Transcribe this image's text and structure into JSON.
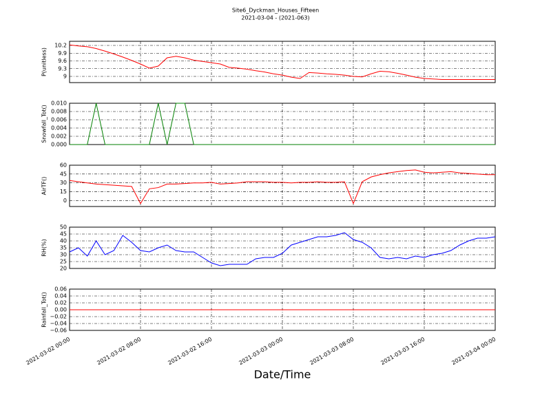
{
  "chart_data": [
    {
      "type": "line",
      "title": "Site6_Dyckman_Houses_Fifteen",
      "subtitle": "2021-03-04 - (2021-063)",
      "ylabel": "P(unitless)",
      "color": "#ff0000",
      "ylim": [
        8.76,
        10.36
      ],
      "yticks": [
        9.0,
        9.3,
        9.6,
        9.9,
        10.2
      ],
      "grid": true,
      "values": [
        10.22,
        10.18,
        10.15,
        10.08,
        9.98,
        9.87,
        9.75,
        9.62,
        9.48,
        9.32,
        9.4,
        9.72,
        9.78,
        9.72,
        9.63,
        9.58,
        9.53,
        9.48,
        9.35,
        9.32,
        9.28,
        9.22,
        9.17,
        9.1,
        9.05,
        8.97,
        8.92,
        9.15,
        9.13,
        9.1,
        9.08,
        9.05,
        9.0,
        8.98,
        9.1,
        9.2,
        9.18,
        9.12,
        9.05,
        8.97,
        8.92,
        8.9,
        8.88,
        8.88,
        8.88,
        8.88,
        8.88,
        8.88,
        8.88
      ]
    },
    {
      "type": "line",
      "ylabel": "Snowfall_Tot()",
      "color": "#007f00",
      "ylim": [
        0,
        0.01
      ],
      "yticks": [
        {
          "value": 0,
          "label": "0.000"
        },
        {
          "value": 0.002,
          "label": "0.002"
        },
        {
          "value": 0.004,
          "label": "0.004"
        },
        {
          "value": 0.006,
          "label": "0.006"
        },
        {
          "value": 0.008,
          "label": "0.008"
        },
        {
          "value": 0.01,
          "label": "0.010"
        }
      ],
      "grid": true,
      "values": [
        0,
        0,
        0,
        0.01,
        0,
        0,
        0,
        0,
        0,
        0,
        0.01,
        0,
        0.01,
        0.01,
        0,
        0,
        0,
        0,
        0,
        0,
        0,
        0,
        0,
        0,
        0,
        0,
        0,
        0,
        0,
        0,
        0,
        0,
        0,
        0,
        0,
        0,
        0,
        0,
        0,
        0,
        0,
        0,
        0,
        0,
        0,
        0,
        0,
        0,
        0
      ]
    },
    {
      "type": "line",
      "ylabel": "AirTF()",
      "color": "#ff0000",
      "ylim": [
        -10,
        60
      ],
      "yticks": [
        0,
        15,
        30,
        45,
        60
      ],
      "grid": true,
      "values": [
        34,
        32,
        30,
        28,
        27,
        26,
        25,
        24,
        -5,
        20,
        22,
        28,
        28,
        29,
        30,
        30,
        31,
        28,
        29,
        30,
        32,
        32,
        32,
        31,
        31,
        30,
        31,
        31,
        32,
        31,
        31,
        32,
        -5,
        32,
        40,
        44,
        47,
        49,
        51,
        52,
        48,
        47,
        48,
        49,
        47,
        46,
        45,
        44,
        44
      ]
    },
    {
      "type": "line",
      "ylabel": "RH(%)",
      "color": "#0000ff",
      "ylim": [
        20,
        50
      ],
      "yticks": [
        20,
        25,
        30,
        35,
        40,
        45,
        50
      ],
      "grid": true,
      "values": [
        32,
        35,
        29,
        40,
        30,
        33,
        44,
        39,
        33,
        32,
        35,
        37,
        33,
        32,
        32,
        28,
        24,
        22,
        23,
        23,
        23,
        27,
        28,
        28,
        31,
        37,
        39,
        41,
        43,
        43,
        44,
        46,
        41,
        39,
        35,
        28,
        27,
        28,
        27,
        29,
        28,
        30,
        31,
        33,
        37,
        40,
        42,
        42,
        43
      ]
    },
    {
      "type": "line",
      "ylabel": "Rainfall_Tot()",
      "color": "#ff0000",
      "xlabel": "Date/Time",
      "ylim": [
        -0.06,
        0.06
      ],
      "yticks": [
        {
          "value": -0.06,
          "label": "−0.06"
        },
        {
          "value": -0.04,
          "label": "−0.04"
        },
        {
          "value": -0.02,
          "label": "−0.02"
        },
        {
          "value": 0,
          "label": "0.00"
        },
        {
          "value": 0.02,
          "label": "0.02"
        },
        {
          "value": 0.04,
          "label": "0.04"
        },
        {
          "value": 0.06,
          "label": "0.06"
        }
      ],
      "grid": true,
      "values": [
        0,
        0,
        0,
        0,
        0,
        0,
        0,
        0,
        0,
        0,
        0,
        0,
        0,
        0,
        0,
        0,
        0,
        0,
        0,
        0,
        0,
        0,
        0,
        0,
        0,
        0,
        0,
        0,
        0,
        0,
        0,
        0,
        0,
        0,
        0,
        0,
        0,
        0,
        0,
        0,
        0,
        0,
        0,
        0,
        0,
        0,
        0,
        0,
        0
      ],
      "xlim": [
        "2021-03-02 00:00",
        "2021-03-04 00:00"
      ],
      "xticks": [
        "2021-03-02 00:00",
        "2021-03-02 08:00",
        "2021-03-02 16:00",
        "2021-03-03 00:00",
        "2021-03-03 08:00",
        "2021-03-03 16:00",
        "2021-03-04 00:00"
      ],
      "x": [
        "2021-03-02 00:00",
        "2021-03-02 01:00",
        "2021-03-02 02:00",
        "2021-03-02 03:00",
        "2021-03-02 04:00",
        "2021-03-02 05:00",
        "2021-03-02 06:00",
        "2021-03-02 07:00",
        "2021-03-02 08:00",
        "2021-03-02 09:00",
        "2021-03-02 10:00",
        "2021-03-02 11:00",
        "2021-03-02 12:00",
        "2021-03-02 13:00",
        "2021-03-02 14:00",
        "2021-03-02 15:00",
        "2021-03-02 16:00",
        "2021-03-02 17:00",
        "2021-03-02 18:00",
        "2021-03-02 19:00",
        "2021-03-02 20:00",
        "2021-03-02 21:00",
        "2021-03-02 22:00",
        "2021-03-02 23:00",
        "2021-03-03 00:00",
        "2021-03-03 01:00",
        "2021-03-03 02:00",
        "2021-03-03 03:00",
        "2021-03-03 04:00",
        "2021-03-03 05:00",
        "2021-03-03 06:00",
        "2021-03-03 07:00",
        "2021-03-03 08:00",
        "2021-03-03 09:00",
        "2021-03-03 10:00",
        "2021-03-03 11:00",
        "2021-03-03 12:00",
        "2021-03-03 13:00",
        "2021-03-03 14:00",
        "2021-03-03 15:00",
        "2021-03-03 16:00",
        "2021-03-03 17:00",
        "2021-03-03 18:00",
        "2021-03-03 19:00",
        "2021-03-03 20:00",
        "2021-03-03 21:00",
        "2021-03-03 22:00",
        "2021-03-03 23:00",
        "2021-03-04 00:00"
      ]
    }
  ]
}
